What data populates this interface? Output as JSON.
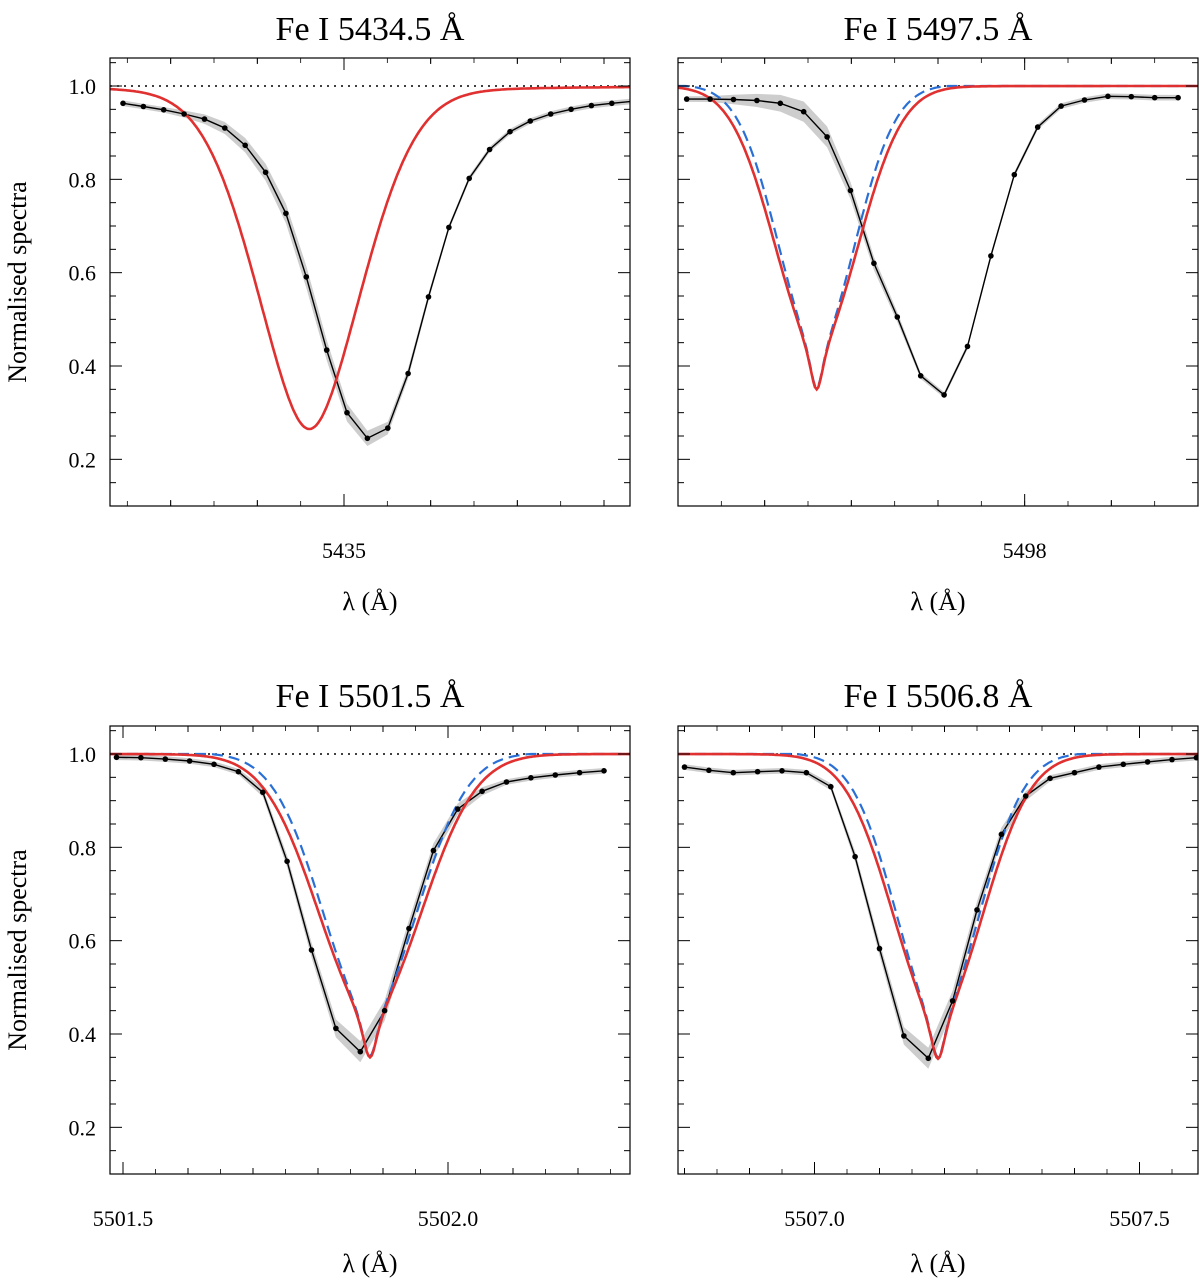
{
  "figure": {
    "ylabel": "Normalised spectra",
    "xlabel": "λ (Å)"
  },
  "colors": {
    "observed": "#000000",
    "observed_band": "#c8c8c8",
    "model_red": "#e03030",
    "model_blue": "#2a6fd6",
    "continuum": "#000000"
  },
  "chart_data": [
    {
      "type": "line",
      "title": "Fe I  5434.5 Å",
      "xlabel": "λ (Å)",
      "ylabel": "Normalised spectra",
      "xlim": [
        5434.73,
        5435.33
      ],
      "ylim": [
        0.1,
        1.06
      ],
      "xticks_major": [
        5435
      ],
      "xtick_labels": [
        "5435"
      ],
      "xticks_minor": [
        5434.8,
        5434.9,
        5435.1,
        5435.2,
        5435.3
      ],
      "yticks_major": [
        0.2,
        0.4,
        0.6,
        0.8,
        1.0
      ],
      "ytick_labels": [
        "0.2",
        "0.4",
        "0.6",
        "0.8",
        "1.0"
      ],
      "continuum_level": 1.0,
      "line_center": 5434.96,
      "depth": 0.735,
      "sigma": 0.063,
      "gamma": 0.05,
      "blue_offset": 0,
      "blue_scale": 1.0,
      "blue_shift": 0,
      "obs_values": [
        0.963,
        0.956,
        0.949,
        0.94,
        0.929,
        0.91,
        0.873,
        0.815,
        0.727,
        0.591,
        0.434,
        0.3,
        0.245,
        0.267,
        0.384,
        0.548,
        0.697,
        0.802,
        0.864,
        0.902,
        0.925,
        0.94,
        0.95,
        0.958,
        0.963,
        0.967
      ],
      "obs_x_start": 5434.745,
      "obs_x_step": 0.0235,
      "series": [
        {
          "name": "Observed spectrum",
          "style": "black line with dots and grey band"
        },
        {
          "name": "Model",
          "style": "red solid"
        }
      ],
      "show_blue": false,
      "x_axis_show": true
    },
    {
      "type": "line",
      "title": "Fe I  5497.5 Å",
      "xlabel": "λ (Å)",
      "ylabel": "",
      "xlim": [
        5497.2,
        5498.4
      ],
      "ylim": [
        0.1,
        1.06
      ],
      "xticks_major": [
        5498
      ],
      "xtick_labels": [
        "5498"
      ],
      "xticks_minor": [
        5497.4,
        5497.6,
        5497.8,
        5498.2
      ],
      "yticks_major": [
        0.2,
        0.4,
        0.6,
        0.8,
        1.0
      ],
      "ytick_labels": [
        "",
        "",
        "",
        "",
        ""
      ],
      "continuum_level": 1.0,
      "line_center": 5497.52,
      "depth": 0.65,
      "sigma": 0.1,
      "gamma": 0.02,
      "blue_offset": 0.003,
      "blue_scale": 0.92,
      "blue_shift": 0,
      "obs_values": [
        0.972,
        0.972,
        0.971,
        0.969,
        0.963,
        0.945,
        0.891,
        0.776,
        0.62,
        0.505,
        0.379,
        0.338,
        0.442,
        0.636,
        0.81,
        0.912,
        0.957,
        0.97,
        0.978,
        0.977,
        0.975,
        0.975
      ],
      "obs_x_start": 5497.22,
      "obs_x_step": 0.054,
      "series": [
        {
          "name": "Observed spectrum",
          "style": "black line with dots and grey band"
        },
        {
          "name": "Model",
          "style": "red solid"
        },
        {
          "name": "Alternative model",
          "style": "blue dashed"
        }
      ],
      "show_blue": true,
      "x_axis_show": true
    },
    {
      "type": "line",
      "title": "Fe I  5501.5 Å",
      "xlabel": "λ (Å)",
      "ylabel": "Normalised spectra",
      "xlim": [
        5501.48,
        5502.28
      ],
      "ylim": [
        0.1,
        1.06
      ],
      "xticks_major": [
        5501.5,
        5502.0
      ],
      "xtick_labels": [
        "5501.5",
        "5502.0"
      ],
      "xticks_minor": [
        5501.6,
        5501.7,
        5501.8,
        5501.9,
        5502.1,
        5502.2
      ],
      "yticks_major": [
        0.2,
        0.4,
        0.6,
        0.8,
        1.0
      ],
      "ytick_labels": [
        "0.2",
        "0.4",
        "0.6",
        "0.8",
        "1.0"
      ],
      "continuum_level": 1.0,
      "line_center": 5501.88,
      "depth": 0.65,
      "sigma": 0.082,
      "gamma": 0.015,
      "blue_offset": 0.003,
      "blue_scale": 0.92,
      "blue_shift": 0,
      "obs_values": [
        0.993,
        0.992,
        0.989,
        0.985,
        0.978,
        0.962,
        0.918,
        0.77,
        0.58,
        0.412,
        0.362,
        0.45,
        0.626,
        0.793,
        0.882,
        0.92,
        0.94,
        0.949,
        0.955,
        0.96,
        0.964
      ],
      "obs_x_start": 5501.49,
      "obs_x_step": 0.0375,
      "series": [
        {
          "name": "Observed spectrum",
          "style": "black line with dots and grey band"
        },
        {
          "name": "Model",
          "style": "red solid"
        },
        {
          "name": "Alternative model",
          "style": "blue dashed"
        }
      ],
      "show_blue": true,
      "x_axis_show": true
    },
    {
      "type": "line",
      "title": "Fe I  5506.8 Å",
      "xlabel": "λ (Å)",
      "ylabel": "",
      "xlim": [
        5506.79,
        5507.59
      ],
      "ylim": [
        0.1,
        1.06
      ],
      "xticks_major": [
        5507.0,
        5507.5
      ],
      "xtick_labels": [
        "5507.0",
        "5507.5"
      ],
      "xticks_minor": [
        5506.8,
        5506.9,
        5507.1,
        5507.2,
        5507.3,
        5507.4
      ],
      "yticks_major": [
        0.2,
        0.4,
        0.6,
        0.8,
        1.0
      ],
      "ytick_labels": [
        "",
        "",
        "",
        "",
        ""
      ],
      "continuum_level": 1.0,
      "line_center": 5507.19,
      "depth": 0.653,
      "sigma": 0.072,
      "gamma": 0.015,
      "blue_offset": 0.003,
      "blue_scale": 0.93,
      "blue_shift": 0,
      "obs_values": [
        0.972,
        0.965,
        0.96,
        0.962,
        0.964,
        0.96,
        0.93,
        0.78,
        0.583,
        0.396,
        0.348,
        0.471,
        0.666,
        0.828,
        0.91,
        0.948,
        0.96,
        0.972,
        0.978,
        0.983,
        0.988,
        0.992
      ],
      "obs_x_start": 5506.8,
      "obs_x_step": 0.0375,
      "series": [
        {
          "name": "Observed spectrum",
          "style": "black line with dots and grey band"
        },
        {
          "name": "Model",
          "style": "red solid"
        },
        {
          "name": "Alternative model",
          "style": "blue dashed"
        }
      ],
      "show_blue": true,
      "x_axis_show": true
    }
  ]
}
